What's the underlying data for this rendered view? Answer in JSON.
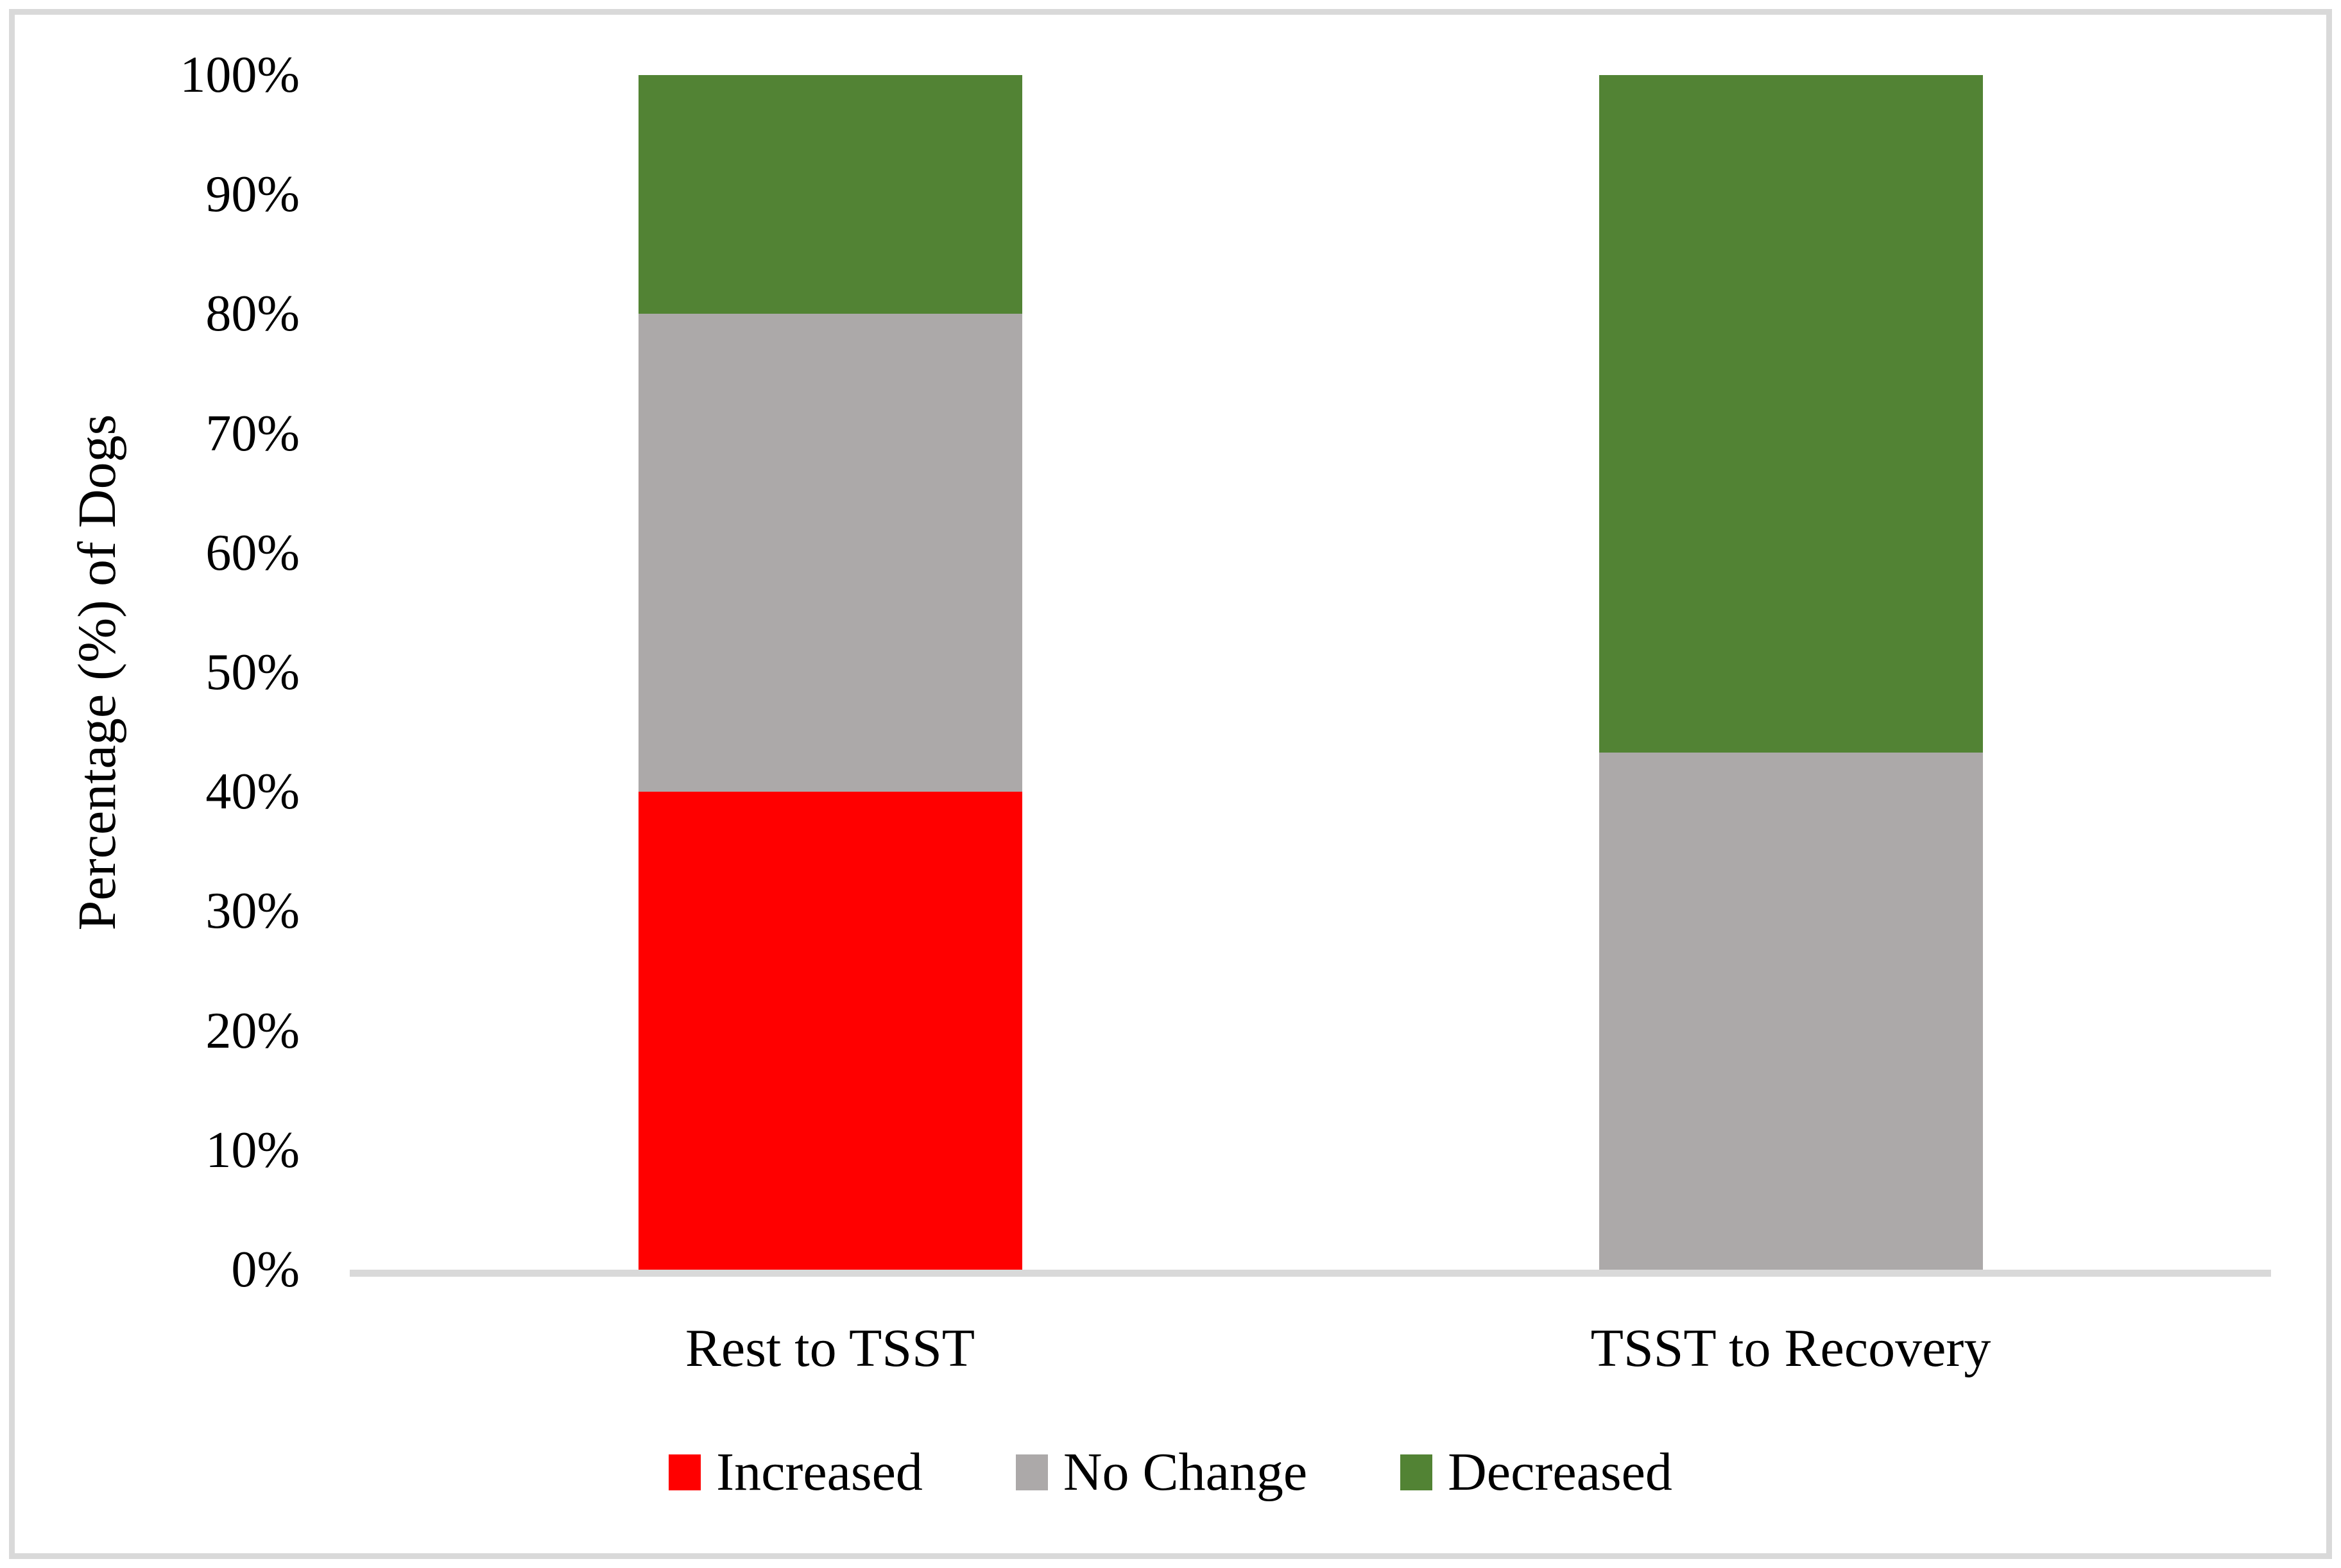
{
  "chart_data": {
    "type": "bar",
    "stacked": true,
    "title": "",
    "categories": [
      "Rest to TSST",
      "TSST to Recovery"
    ],
    "series": [
      {
        "name": "Increased",
        "color": "#FF0000",
        "values": [
          40,
          0
        ]
      },
      {
        "name": "No Change",
        "color": "#ACA9A9",
        "values": [
          40,
          43.3
        ]
      },
      {
        "name": "Decreased",
        "color": "#528334",
        "values": [
          20,
          56.7
        ]
      }
    ],
    "xlabel": "",
    "ylabel": "Percentage (%) of Dogs",
    "ylim": [
      0,
      100
    ],
    "y_tick_labels": [
      "0%",
      "10%",
      "20%",
      "30%",
      "40%",
      "50%",
      "60%",
      "70%",
      "80%",
      "90%",
      "100%"
    ],
    "grid": false,
    "legend_position": "bottom",
    "axis_line_color": "#D9D9D9",
    "frame_border_color": "#D9D9D9",
    "background_color": "#FFFFFF",
    "text_color": "#000000"
  }
}
